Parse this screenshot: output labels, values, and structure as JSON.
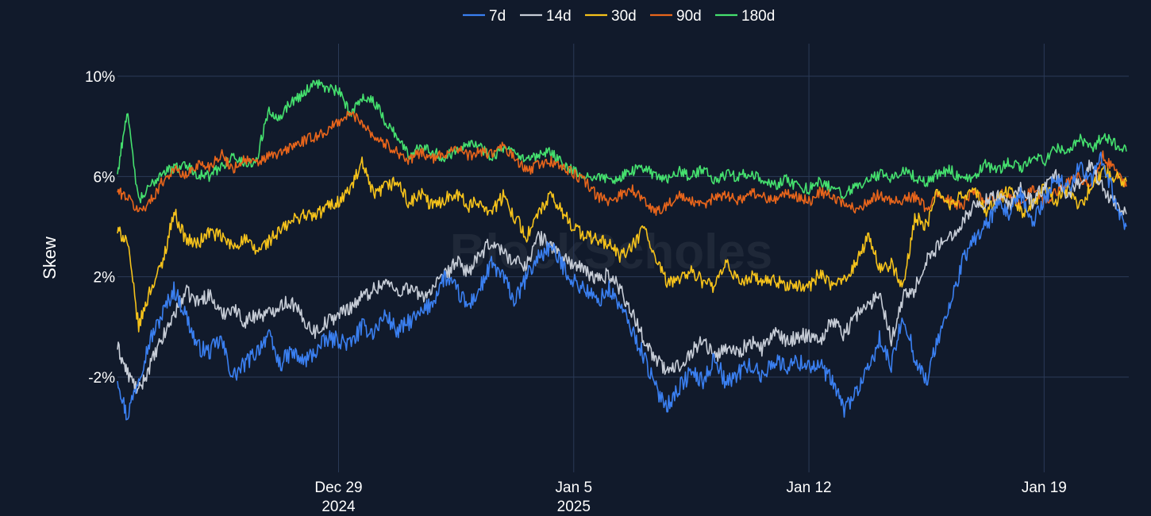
{
  "chart_data": {
    "type": "line",
    "title": "",
    "xlabel": "",
    "ylabel": "Skew",
    "watermark": "BlockScholes",
    "ylim": [
      -5.8,
      11.3
    ],
    "xlim": [
      -9.4,
      33.6
    ],
    "grid": true,
    "legend_position": "top-center",
    "y_ticks": [
      {
        "value": 10,
        "label": "10%"
      },
      {
        "value": 6,
        "label": "6%"
      },
      {
        "value": 2,
        "label": "2%"
      },
      {
        "value": -2,
        "label": "-2%"
      }
    ],
    "x_ticks": [
      {
        "value": 0,
        "label": "Dec 29",
        "sublabel": "2024"
      },
      {
        "value": 10,
        "label": "Jan 5",
        "sublabel": "2025"
      },
      {
        "value": 20,
        "label": "Jan 12",
        "sublabel": ""
      },
      {
        "value": 30,
        "label": "Jan 19",
        "sublabel": ""
      }
    ],
    "x_unit": "index in 12-hour steps from Dec 29 2024 00:00",
    "series": [
      {
        "name": "7d",
        "color": "#3a7ff0",
        "x": [
          -9.4,
          -9,
          -8.5,
          -8,
          -7.5,
          -7,
          -6.5,
          -6,
          -5.5,
          -5,
          -4.5,
          -4,
          -3.5,
          -3,
          -2.5,
          -2,
          -1.5,
          -1,
          -0.5,
          0,
          0.5,
          1,
          1.5,
          2,
          2.5,
          3,
          3.5,
          4,
          4.5,
          5,
          5.5,
          6,
          6.5,
          7,
          7.5,
          8,
          8.5,
          9,
          9.5,
          10,
          10.5,
          11,
          11.5,
          12,
          12.5,
          13,
          13.5,
          14,
          14.5,
          15,
          15.5,
          16,
          16.5,
          17,
          17.5,
          18,
          18.5,
          19,
          19.5,
          20,
          20.5,
          21,
          21.5,
          22,
          22.5,
          23,
          23.5,
          24,
          24.5,
          25,
          25.5,
          26,
          26.5,
          27,
          27.5,
          28,
          28.5,
          29,
          29.5,
          30,
          30.5,
          31,
          31.5,
          32,
          32.5,
          33,
          33.5
        ],
        "values": [
          -2,
          -3.6,
          -2,
          -0.5,
          0.5,
          1.5,
          0.5,
          -0.8,
          -1,
          -0.5,
          -2,
          -1.5,
          -1,
          -0.3,
          -1.5,
          -1,
          -1.4,
          -1,
          -0.5,
          -0.5,
          -0.7,
          0,
          -0.2,
          0.5,
          -0.2,
          0.2,
          0.5,
          1,
          2,
          1.5,
          0.8,
          1.5,
          2.5,
          2,
          1,
          2,
          2.8,
          3.2,
          2.5,
          1.8,
          1.5,
          1,
          1.5,
          0.8,
          -0.2,
          -1.2,
          -2.5,
          -3.1,
          -2.4,
          -1.8,
          -2.2,
          -1.2,
          -2.3,
          -1.8,
          -1.5,
          -2.0,
          -1.3,
          -1.6,
          -1.4,
          -1.5,
          -1.6,
          -2.2,
          -3.3,
          -2.6,
          -1.8,
          -0.5,
          -1.6,
          0.5,
          -1.2,
          -2.2,
          -0.4,
          0.8,
          2.5,
          3.5,
          4,
          4.8,
          4.5,
          5.2,
          4.2,
          5,
          6,
          5.5,
          6.5,
          5.8,
          6.8,
          5,
          4
        ]
      },
      {
        "name": "14d",
        "color": "#c6ccd6",
        "x": [
          -9.4,
          -9,
          -8.5,
          -8,
          -7.5,
          -7,
          -6.5,
          -6,
          -5.5,
          -5,
          -4.5,
          -4,
          -3.5,
          -3,
          -2.5,
          -2,
          -1.5,
          -1,
          -0.5,
          0,
          0.5,
          1,
          1.5,
          2,
          2.5,
          3,
          3.5,
          4,
          4.5,
          5,
          5.5,
          6,
          6.5,
          7,
          7.5,
          8,
          8.5,
          9,
          9.5,
          10,
          10.5,
          11,
          11.5,
          12,
          12.5,
          13,
          13.5,
          14,
          14.5,
          15,
          15.5,
          16,
          16.5,
          17,
          17.5,
          18,
          18.5,
          19,
          19.5,
          20,
          20.5,
          21,
          21.5,
          22,
          22.5,
          23,
          23.5,
          24,
          24.5,
          25,
          25.5,
          26,
          26.5,
          27,
          27.5,
          28,
          28.5,
          29,
          29.5,
          30,
          30.5,
          31,
          31.5,
          32,
          32.5,
          33,
          33.5
        ],
        "values": [
          -0.8,
          -1.8,
          -2.6,
          -1.5,
          -0.5,
          0.5,
          1.4,
          1.0,
          1.3,
          0.5,
          0.8,
          0.2,
          0.5,
          0.5,
          0.9,
          1.0,
          0.3,
          -0.2,
          0.2,
          0.5,
          0.8,
          1.2,
          1.5,
          1.8,
          1.4,
          1.6,
          1.2,
          1.5,
          2,
          2.6,
          2.2,
          2.8,
          3.4,
          3.0,
          2.6,
          2.5,
          3.6,
          3.3,
          2.8,
          2.5,
          2.2,
          1.9,
          2.1,
          1.5,
          0.5,
          -0.5,
          -1.3,
          -1.8,
          -1.5,
          -1.0,
          -0.5,
          -1.2,
          -0.8,
          -1.0,
          -0.6,
          -0.9,
          -0.2,
          -0.6,
          -0.4,
          -0.3,
          -0.5,
          0.3,
          -0.3,
          0.5,
          0.8,
          1.4,
          -0.5,
          1.2,
          1.5,
          2.7,
          3.2,
          3.6,
          4.2,
          4.8,
          5,
          5.2,
          4.8,
          5.5,
          5,
          5.6,
          6,
          5.2,
          5.8,
          6.5,
          5.5,
          5,
          4.5
        ]
      },
      {
        "name": "30d",
        "color": "#f5c21b",
        "x": [
          -9.4,
          -9,
          -8.5,
          -8,
          -7.5,
          -7,
          -6.5,
          -6,
          -5.5,
          -5,
          -4.5,
          -4,
          -3.5,
          -3,
          -2.5,
          -2,
          -1.5,
          -1,
          -0.5,
          0,
          0.5,
          1,
          1.5,
          2,
          2.5,
          3,
          3.5,
          4,
          4.5,
          5,
          5.5,
          6,
          6.5,
          7,
          7.5,
          8,
          8.5,
          9,
          9.5,
          10,
          10.5,
          11,
          11.5,
          12,
          12.5,
          13,
          13.5,
          14,
          14.5,
          15,
          15.5,
          16,
          16.5,
          17,
          17.5,
          18,
          18.5,
          19,
          19.5,
          20,
          20.5,
          21,
          21.5,
          22,
          22.5,
          23,
          23.5,
          24,
          24.5,
          25,
          25.5,
          26,
          26.5,
          27,
          27.5,
          28,
          28.5,
          29,
          29.5,
          30,
          30.5,
          31,
          31.5,
          32,
          32.5,
          33,
          33.5
        ],
        "values": [
          3.8,
          3.5,
          0.0,
          1.5,
          2.5,
          4.6,
          3.5,
          3.3,
          3.8,
          3.6,
          3.2,
          3.5,
          3.0,
          3.4,
          3.8,
          4.2,
          4.5,
          4.4,
          4.8,
          5.0,
          5.5,
          6.5,
          5.2,
          5.6,
          5.8,
          4.9,
          5.3,
          4.8,
          5.1,
          5.4,
          4.8,
          5.0,
          4.6,
          5.2,
          4.4,
          3.6,
          4.5,
          5.2,
          4.6,
          4.0,
          3.6,
          3.5,
          3.3,
          2.8,
          3.2,
          4.0,
          2.6,
          1.7,
          2.0,
          2.2,
          1.8,
          1.6,
          2.5,
          1.8,
          2.0,
          1.8,
          1.8,
          1.7,
          1.6,
          1.6,
          2.2,
          1.5,
          2.0,
          2.5,
          3.6,
          2.4,
          2.5,
          1.5,
          4.4,
          4.0,
          5.5,
          4.8,
          5.2,
          5.5,
          4.6,
          5.0,
          5.5,
          4.6,
          4.8,
          5.6,
          5.0,
          5.5,
          4.8,
          5.6,
          6.2,
          6.0,
          5.8
        ]
      },
      {
        "name": "90d",
        "color": "#e8651b",
        "x": [
          -9.4,
          -9,
          -8.5,
          -8,
          -7.5,
          -7,
          -6.5,
          -6,
          -5.5,
          -5,
          -4.5,
          -4,
          -3.5,
          -3,
          -2.5,
          -2,
          -1.5,
          -1,
          -0.5,
          0,
          0.5,
          1,
          1.5,
          2,
          2.5,
          3,
          3.5,
          4,
          4.5,
          5,
          5.5,
          6,
          6.5,
          7,
          7.5,
          8,
          8.5,
          9,
          9.5,
          10,
          10.5,
          11,
          11.5,
          12,
          12.5,
          13,
          13.5,
          14,
          14.5,
          15,
          15.5,
          16,
          16.5,
          17,
          17.5,
          18,
          18.5,
          19,
          19.5,
          20,
          20.5,
          21,
          21.5,
          22,
          22.5,
          23,
          23.5,
          24,
          24.5,
          25,
          25.5,
          26,
          26.5,
          27,
          27.5,
          28,
          28.5,
          29,
          29.5,
          30,
          30.5,
          31,
          31.5,
          32,
          32.5,
          33,
          33.5
        ],
        "values": [
          5.4,
          5.2,
          4.6,
          5.0,
          5.8,
          6.3,
          6.0,
          6.5,
          6.4,
          6.9,
          6.3,
          6.7,
          6.5,
          6.8,
          6.9,
          7.2,
          7.4,
          7.6,
          7.8,
          8.2,
          8.5,
          8.2,
          7.6,
          7.3,
          7.0,
          6.6,
          7.0,
          6.7,
          6.9,
          7.2,
          6.8,
          7.0,
          6.9,
          7.2,
          6.7,
          6.2,
          6.5,
          6.6,
          6.4,
          6.1,
          5.8,
          5.2,
          5.0,
          5.3,
          5.5,
          5.0,
          4.6,
          4.9,
          5.2,
          5.0,
          4.8,
          5.2,
          5.3,
          5.0,
          5.4,
          5.2,
          5.1,
          5.3,
          5.2,
          5.0,
          5.4,
          5.2,
          4.9,
          4.7,
          5.0,
          5.3,
          5.0,
          5.1,
          5.2,
          4.7,
          5.3,
          5.0,
          4.8,
          5.5,
          5.0,
          5.2,
          5.4,
          4.8,
          5.6,
          5.0,
          5.4,
          5.8,
          6.0,
          5.5,
          6.8,
          6.2,
          5.6
        ]
      },
      {
        "name": "180d",
        "color": "#45e06e",
        "x": [
          -9.4,
          -9,
          -8.5,
          -8,
          -7.5,
          -7,
          -6.5,
          -6,
          -5.5,
          -5,
          -4.5,
          -4,
          -3.5,
          -3,
          -2.5,
          -2,
          -1.5,
          -1,
          -0.5,
          0,
          0.5,
          1,
          1.5,
          2,
          2.5,
          3,
          3.5,
          4,
          4.5,
          5,
          5.5,
          6,
          6.5,
          7,
          7.5,
          8,
          8.5,
          9,
          9.5,
          10,
          10.5,
          11,
          11.5,
          12,
          12.5,
          13,
          13.5,
          14,
          14.5,
          15,
          15.5,
          16,
          16.5,
          17,
          17.5,
          18,
          18.5,
          19,
          19.5,
          20,
          20.5,
          21,
          21.5,
          22,
          22.5,
          23,
          23.5,
          24,
          24.5,
          25,
          25.5,
          26,
          26.5,
          27,
          27.5,
          28,
          28.5,
          29,
          29.5,
          30,
          30.5,
          31,
          31.5,
          32,
          32.5,
          33,
          33.5
        ],
        "values": [
          6.1,
          8.6,
          5.0,
          5.6,
          6.2,
          6.3,
          6.5,
          6.1,
          6.0,
          6.4,
          6.8,
          6.5,
          6.6,
          8.6,
          8.4,
          9.0,
          9.3,
          9.8,
          9.5,
          9.4,
          8.5,
          9.2,
          9.0,
          8.2,
          7.6,
          6.8,
          7.3,
          7.0,
          6.7,
          7.1,
          7.4,
          7.2,
          6.8,
          7.1,
          6.9,
          6.6,
          6.8,
          7.0,
          6.5,
          6.2,
          5.9,
          6.1,
          5.8,
          6.0,
          6.2,
          6.4,
          6.0,
          5.9,
          6.2,
          6.0,
          6.3,
          5.8,
          6.1,
          6.0,
          6.2,
          5.8,
          5.6,
          5.9,
          5.6,
          5.5,
          5.8,
          5.5,
          5.3,
          5.6,
          5.8,
          6.1,
          5.9,
          6.2,
          6.0,
          5.8,
          6.1,
          6.3,
          5.8,
          6.0,
          6.5,
          6.2,
          6.6,
          6.3,
          6.8,
          6.6,
          7.2,
          6.9,
          7.5,
          7.1,
          7.6,
          7.3,
          7.0
        ]
      }
    ]
  }
}
